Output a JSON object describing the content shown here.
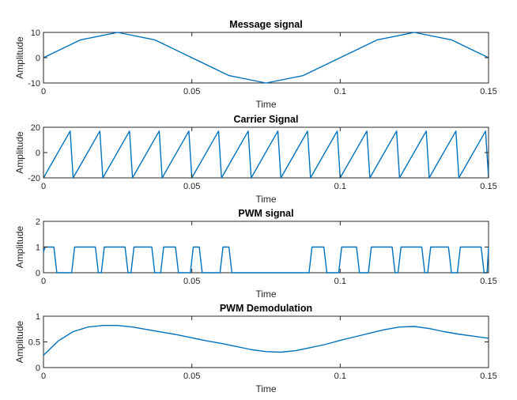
{
  "chart_data": [
    {
      "type": "line",
      "title": "Message signal",
      "xlabel": "Time",
      "ylabel": "Amplitude",
      "xlim": [
        0,
        0.15
      ],
      "ylim": [
        -10,
        10
      ],
      "xticks": [
        "0",
        "0.05",
        "0.1",
        "0.15"
      ],
      "yticks": [
        "-10",
        "0",
        "10"
      ],
      "color": "#0072BD",
      "series": [
        {
          "x": [
            0,
            0.0125,
            0.025,
            0.0375,
            0.05,
            0.0625,
            0.075,
            0.0875,
            0.1,
            0.1125,
            0.125,
            0.1375,
            0.15
          ],
          "values": [
            0,
            7.07,
            10,
            7.07,
            0,
            -7.07,
            -10,
            -7.07,
            0,
            7.07,
            10,
            7.07,
            0
          ]
        }
      ]
    },
    {
      "type": "line",
      "title": "Carrier Signal",
      "xlabel": "Time",
      "ylabel": "Amplitude",
      "xlim": [
        0,
        0.15
      ],
      "ylim": [
        -20,
        20
      ],
      "xticks": [
        "0",
        "0.05",
        "0.1",
        "0.15"
      ],
      "yticks": [
        "-20",
        "0",
        "20"
      ],
      "color": "#0072BD",
      "series": [
        {
          "x": [
            0,
            0.009,
            0.01,
            0.019,
            0.02,
            0.029,
            0.03,
            0.039,
            0.04,
            0.049,
            0.05,
            0.059,
            0.06,
            0.069,
            0.07,
            0.079,
            0.08,
            0.089,
            0.09,
            0.099,
            0.1,
            0.109,
            0.11,
            0.119,
            0.12,
            0.129,
            0.13,
            0.139,
            0.14,
            0.149,
            0.15
          ],
          "values": [
            -20,
            17,
            -20,
            17,
            -20,
            17,
            -20,
            17,
            -20,
            17,
            -20,
            17,
            -20,
            17,
            -20,
            17,
            -20,
            17,
            -20,
            17,
            -20,
            17,
            -20,
            17,
            -20,
            17,
            -20,
            17,
            -20,
            17,
            -20
          ]
        }
      ]
    },
    {
      "type": "line",
      "title": "PWM signal",
      "xlabel": "Time",
      "ylabel": "Amplitude",
      "xlim": [
        0,
        0.15
      ],
      "ylim": [
        0,
        2
      ],
      "xticks": [
        "0",
        "0.05",
        "0.1",
        "0.15"
      ],
      "yticks": [
        "0",
        "1",
        "2"
      ],
      "color": "#0072BD",
      "series": [
        {
          "x": [
            0,
            0.0005,
            0.0035,
            0.0045,
            0.0095,
            0.0105,
            0.0175,
            0.0185,
            0.0195,
            0.0205,
            0.0275,
            0.0285,
            0.0295,
            0.0305,
            0.0365,
            0.0375,
            0.0395,
            0.0405,
            0.0445,
            0.0455,
            0.0495,
            0.0505,
            0.0525,
            0.0535,
            0.0595,
            0.0605,
            0.0625,
            0.0635,
            0.0695,
            0.0705,
            0.0725,
            0.0735,
            0.0795,
            0.0805,
            0.0825,
            0.0835,
            0.0895,
            0.0905,
            0.0945,
            0.0955,
            0.0995,
            0.1005,
            0.1055,
            0.1065,
            0.1095,
            0.1105,
            0.1175,
            0.1185,
            0.1195,
            0.1205,
            0.1275,
            0.1285,
            0.1295,
            0.1305,
            0.1365,
            0.1375,
            0.1395,
            0.1405,
            0.1475,
            0.1485,
            0.1495,
            0.15
          ],
          "values": [
            0.8,
            1,
            1,
            0,
            0,
            1,
            1,
            0,
            0,
            1,
            1,
            0,
            0,
            1,
            1,
            0,
            0,
            1,
            1,
            0,
            0,
            1,
            1,
            0,
            0,
            1,
            1,
            0,
            0,
            0,
            0,
            0,
            0,
            0,
            0,
            0,
            0,
            1,
            1,
            0,
            0,
            1,
            1,
            0,
            0,
            1,
            1,
            0,
            0,
            1,
            1,
            0,
            0,
            1,
            1,
            0,
            0,
            1,
            1,
            0,
            0,
            1
          ]
        }
      ]
    },
    {
      "type": "line",
      "title": "PWM Demodulation",
      "xlabel": "Time",
      "ylabel": "Amplitude",
      "xlim": [
        0,
        0.15
      ],
      "ylim": [
        0,
        1
      ],
      "xticks": [
        "0",
        "0.05",
        "0.1",
        "0.15"
      ],
      "yticks": [
        "0",
        "0.5",
        "1"
      ],
      "color": "#0072BD",
      "series": [
        {
          "x": [
            0,
            0.005,
            0.01,
            0.015,
            0.02,
            0.025,
            0.03,
            0.035,
            0.04,
            0.045,
            0.05,
            0.055,
            0.06,
            0.065,
            0.07,
            0.075,
            0.08,
            0.085,
            0.09,
            0.095,
            0.1,
            0.105,
            0.11,
            0.115,
            0.12,
            0.125,
            0.13,
            0.135,
            0.14,
            0.145,
            0.15
          ],
          "values": [
            0.24,
            0.52,
            0.7,
            0.79,
            0.82,
            0.82,
            0.79,
            0.74,
            0.69,
            0.64,
            0.58,
            0.52,
            0.47,
            0.41,
            0.35,
            0.31,
            0.3,
            0.33,
            0.39,
            0.45,
            0.53,
            0.6,
            0.67,
            0.74,
            0.79,
            0.8,
            0.76,
            0.7,
            0.65,
            0.61,
            0.57
          ]
        }
      ]
    }
  ]
}
